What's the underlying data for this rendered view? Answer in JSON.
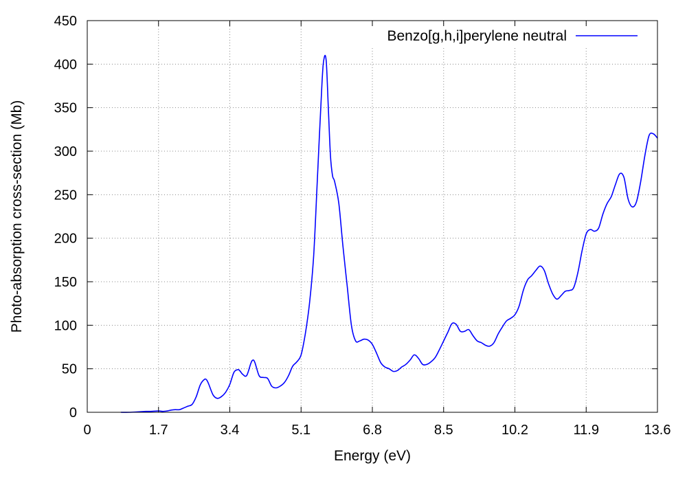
{
  "chart_data": {
    "type": "line",
    "title": "",
    "xlabel": "Energy (eV)",
    "ylabel": "Photo-absorption cross-section (Mb)",
    "xlim": [
      0,
      13.6
    ],
    "ylim": [
      0,
      450
    ],
    "xticks": [
      "0",
      "1.7",
      "3.4",
      "5.1",
      "6.8",
      "8.5",
      "10.2",
      "11.9",
      "13.6"
    ],
    "yticks": [
      "0",
      "50",
      "100",
      "150",
      "200",
      "250",
      "300",
      "350",
      "400",
      "450"
    ],
    "grid": true,
    "legend_position": "top-right",
    "series": [
      {
        "name": "Benzo[g,h,i]perylene neutral",
        "color": "#0000ff",
        "x": [
          0.8,
          1.0,
          1.2,
          1.4,
          1.5,
          1.7,
          1.8,
          1.9,
          2.0,
          2.1,
          2.2,
          2.3,
          2.4,
          2.5,
          2.6,
          2.7,
          2.8,
          2.85,
          2.9,
          3.0,
          3.1,
          3.2,
          3.3,
          3.4,
          3.5,
          3.6,
          3.65,
          3.7,
          3.8,
          3.9,
          3.95,
          4.0,
          4.1,
          4.2,
          4.3,
          4.4,
          4.5,
          4.6,
          4.7,
          4.8,
          4.9,
          5.0,
          5.1,
          5.2,
          5.3,
          5.4,
          5.5,
          5.6,
          5.65,
          5.7,
          5.75,
          5.8,
          5.85,
          5.9,
          6.0,
          6.1,
          6.2,
          6.3,
          6.4,
          6.5,
          6.6,
          6.7,
          6.8,
          6.9,
          7.0,
          7.1,
          7.2,
          7.3,
          7.4,
          7.5,
          7.6,
          7.7,
          7.8,
          7.9,
          8.0,
          8.1,
          8.2,
          8.3,
          8.4,
          8.5,
          8.6,
          8.7,
          8.8,
          8.9,
          9.0,
          9.1,
          9.2,
          9.3,
          9.4,
          9.5,
          9.6,
          9.7,
          9.8,
          9.9,
          10.0,
          10.1,
          10.2,
          10.3,
          10.4,
          10.5,
          10.6,
          10.7,
          10.8,
          10.9,
          11.0,
          11.1,
          11.2,
          11.3,
          11.4,
          11.5,
          11.6,
          11.7,
          11.8,
          11.9,
          12.0,
          12.1,
          12.2,
          12.3,
          12.4,
          12.5,
          12.6,
          12.7,
          12.8,
          12.9,
          13.0,
          13.1,
          13.2,
          13.3,
          13.4,
          13.5,
          13.6
        ],
        "y": [
          0,
          0,
          0.5,
          1,
          1,
          1.5,
          1,
          1.5,
          2.5,
          3,
          3,
          5,
          7,
          9,
          18,
          32,
          38,
          37,
          32,
          20,
          16,
          18,
          23,
          32,
          46,
          49,
          47,
          44,
          42,
          56,
          60,
          57,
          42,
          40,
          39,
          30,
          28,
          30,
          34,
          42,
          53,
          58,
          66,
          90,
          125,
          180,
          280,
          380,
          407,
          403,
          350,
          295,
          272,
          265,
          240,
          190,
          145,
          100,
          82,
          82,
          84,
          83,
          78,
          68,
          57,
          52,
          50,
          47,
          48,
          52,
          55,
          60,
          66,
          62,
          55,
          55,
          58,
          63,
          72,
          82,
          92,
          102,
          101,
          93,
          93,
          95,
          88,
          82,
          80,
          77,
          76,
          80,
          90,
          98,
          105,
          108,
          112,
          122,
          140,
          152,
          157,
          163,
          168,
          163,
          148,
          136,
          130,
          134,
          139,
          140,
          143,
          160,
          185,
          205,
          210,
          208,
          212,
          228,
          240,
          248,
          262,
          274,
          270,
          245,
          236,
          242,
          265,
          295,
          318,
          320,
          315
        ]
      }
    ]
  }
}
